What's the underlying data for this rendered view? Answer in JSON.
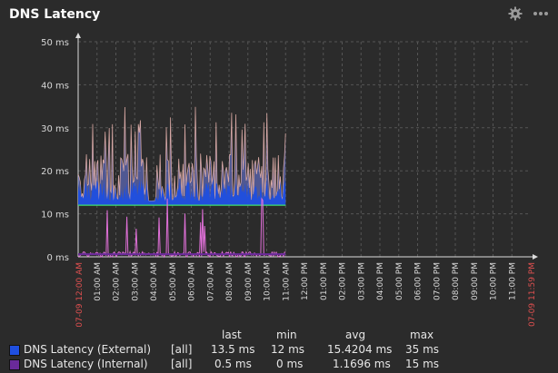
{
  "header": {
    "title": "DNS Latency",
    "icons": {
      "settings": "gear-icon",
      "more": "more-horizontal-icon"
    }
  },
  "chart_data": {
    "type": "line",
    "title": "DNS Latency",
    "ylabel": "",
    "xlabel": "",
    "ylim": [
      0,
      50
    ],
    "y_ticks": [
      "0 ms",
      "10 ms",
      "20 ms",
      "30 ms",
      "40 ms",
      "50 ms"
    ],
    "x_range_labels": {
      "start": "07-09 12:00 AM",
      "end": "07-09 11:59 PM"
    },
    "x_ticks": [
      "01:00 AM",
      "02:00 AM",
      "03:00 AM",
      "04:00 AM",
      "05:00 AM",
      "06:00 AM",
      "07:00 AM",
      "08:00 AM",
      "09:00 AM",
      "10:00 AM",
      "11:00 AM",
      "12:00 PM",
      "01:00 PM",
      "02:00 PM",
      "03:00 PM",
      "04:00 PM",
      "05:00 PM",
      "06:00 PM",
      "07:00 PM",
      "08:00 PM",
      "09:00 PM",
      "10:00 PM",
      "11:00 PM"
    ],
    "data_until_hour": 11,
    "gap_hours": [
      3.7,
      4.1
    ],
    "grid": true,
    "legend_position": "bottom",
    "series": [
      {
        "name": "DNS Latency (External)",
        "color": "#1f4fe0",
        "band_color": "#6f7de8",
        "peak_color": "#f0b8b0",
        "baseline": 12,
        "typical_low": 13,
        "typical_high": 24,
        "peak": 35
      },
      {
        "name": "DNS Latency (Internal)",
        "color": "#6a2a9a",
        "spike_color": "#e070d8",
        "baseline": 0,
        "spike_high": 15
      }
    ],
    "green_baseline": {
      "color": "#40e070",
      "value": 12
    }
  },
  "legend": {
    "headers": {
      "last": "last",
      "min": "min",
      "avg": "avg",
      "max": "max"
    },
    "rows": [
      {
        "name": "DNS Latency (External)",
        "scope": "[all]",
        "last": "13.5 ms",
        "min": "12 ms",
        "avg": "15.4204 ms",
        "max": "35 ms",
        "color": "#1f4fe0"
      },
      {
        "name": "DNS Latency (Internal)",
        "scope": "[all]",
        "last": "0.5 ms",
        "min": "0 ms",
        "avg": "1.1696 ms",
        "max": "15 ms",
        "color": "#6a2a9a"
      }
    ]
  }
}
